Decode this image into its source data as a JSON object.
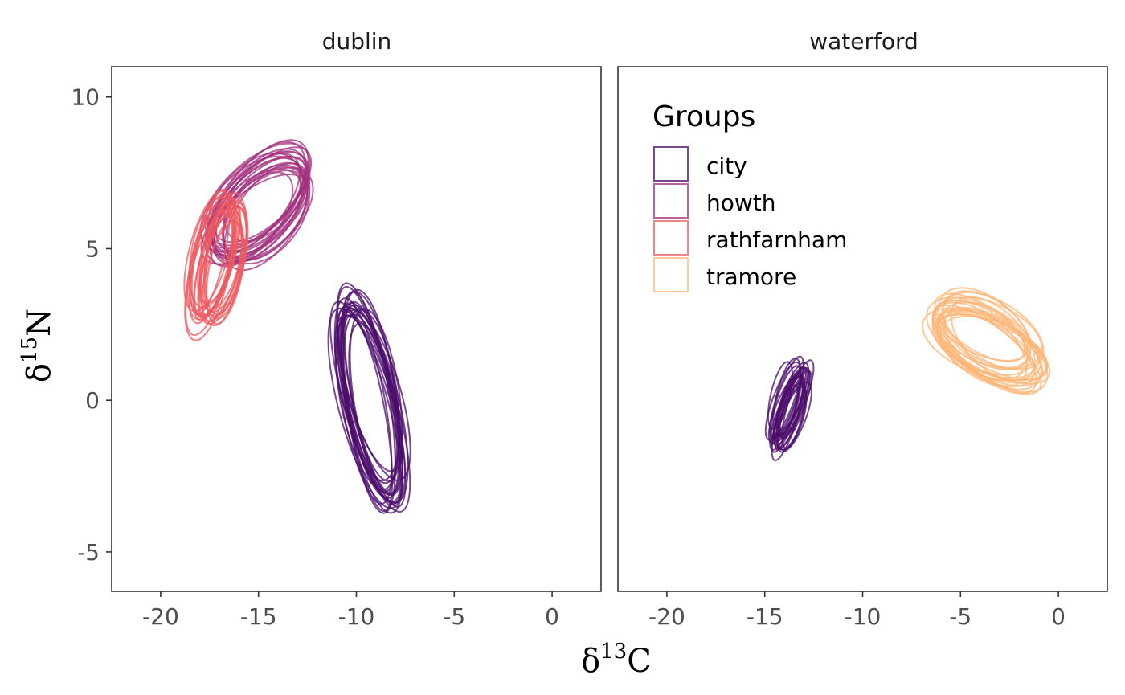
{
  "chart_data": {
    "type": "line",
    "subtype": "ellipse-facets",
    "panels": [
      "dublin",
      "waterford"
    ],
    "xlabel": {
      "main": "δ",
      "sup": "13",
      "tail": "C"
    },
    "ylabel": {
      "main": "δ",
      "sup": "15",
      "tail": "N"
    },
    "xlim": [
      -22.5,
      2.5
    ],
    "ylim": [
      -6.3,
      11.0
    ],
    "xticks": [
      -20,
      -15,
      -10,
      -5,
      0
    ],
    "yticks": [
      -5,
      0,
      5,
      10
    ],
    "legend": {
      "title": "Groups",
      "position": "inside-top-left of waterford panel",
      "entries": [
        "city",
        "howth",
        "rathfarnham",
        "tramore"
      ]
    },
    "colors": {
      "city": "#4b0c6b",
      "howth": "#a3307e",
      "rathfarnham": "#ed5a5f",
      "tramore": "#fdb677"
    },
    "groups": [
      {
        "name": "city",
        "panel": "dublin",
        "center": [
          -9.3,
          0.0
        ],
        "sd_major": 3.3,
        "sd_minor": 1.1,
        "angle_deg": 110,
        "n_ellipses": 22
      },
      {
        "name": "howth",
        "panel": "dublin",
        "center": [
          -15.0,
          6.3
        ],
        "sd_major": 2.7,
        "sd_minor": 1.2,
        "angle_deg": 28,
        "n_ellipses": 22
      },
      {
        "name": "rathfarnham",
        "panel": "dublin",
        "center": [
          -17.1,
          4.5
        ],
        "sd_major": 2.0,
        "sd_minor": 0.85,
        "angle_deg": 68,
        "n_ellipses": 22
      },
      {
        "name": "city",
        "panel": "waterford",
        "center": [
          -13.8,
          -0.2
        ],
        "sd_major": 1.35,
        "sd_minor": 0.45,
        "angle_deg": 62,
        "n_ellipses": 22
      },
      {
        "name": "tramore",
        "panel": "waterford",
        "center": [
          -3.6,
          2.0
        ],
        "sd_major": 2.7,
        "sd_minor": 0.95,
        "angle_deg": -18,
        "n_ellipses": 22
      }
    ]
  }
}
